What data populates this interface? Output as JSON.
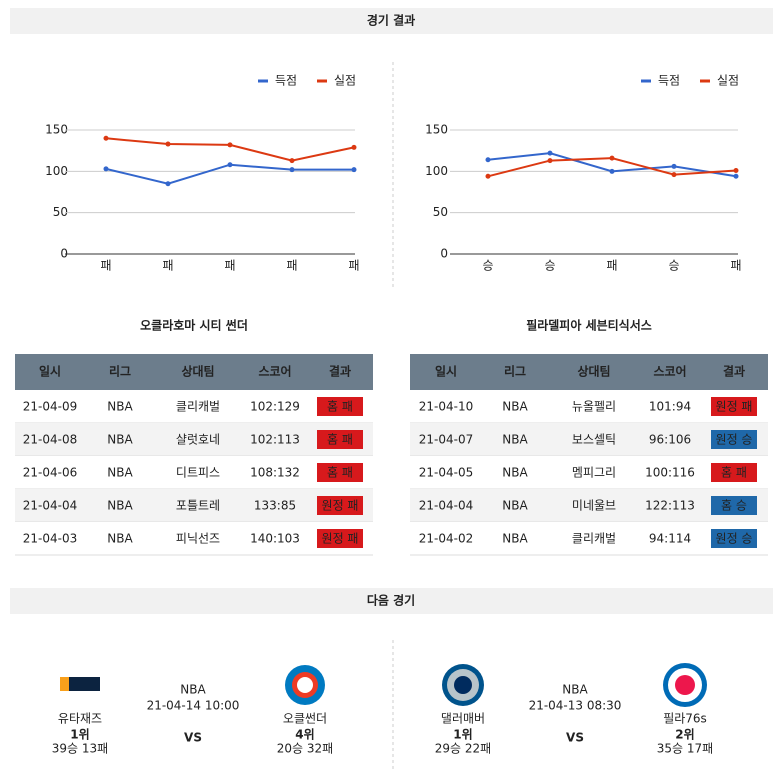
{
  "header": {
    "title": "경기 결과"
  },
  "chart_data": [
    {
      "type": "line",
      "categories": [
        "패",
        "패",
        "패",
        "패",
        "패"
      ],
      "series": [
        {
          "name": "득점",
          "color": "#3366cc",
          "values": [
            103,
            85,
            108,
            102,
            102
          ]
        },
        {
          "name": "실점",
          "color": "#dc3912",
          "values": [
            140,
            133,
            132,
            113,
            129
          ]
        }
      ],
      "ylim": [
        0,
        150
      ],
      "yticks": [
        0,
        50,
        100,
        150
      ],
      "grid": true,
      "legend": "top-right"
    },
    {
      "type": "line",
      "categories": [
        "승",
        "승",
        "패",
        "승",
        "패"
      ],
      "series": [
        {
          "name": "득점",
          "color": "#3366cc",
          "values": [
            114,
            122,
            100,
            106,
            94
          ]
        },
        {
          "name": "실점",
          "color": "#dc3912",
          "values": [
            94,
            113,
            116,
            96,
            101
          ]
        }
      ],
      "ylim": [
        0,
        150
      ],
      "yticks": [
        0,
        50,
        100,
        150
      ],
      "grid": true,
      "legend": "top-right"
    }
  ],
  "tables": [
    {
      "title": "오클라호마 시티 썬더",
      "columns": [
        "일시",
        "리그",
        "상대팀",
        "스코어",
        "결과"
      ],
      "rows": [
        [
          "21-04-09",
          "NBA",
          "클리캐벌",
          "102:129",
          {
            "text": "홈 패",
            "color": "#d7191c"
          }
        ],
        [
          "21-04-08",
          "NBA",
          "샬럿호네",
          "102:113",
          {
            "text": "홈 패",
            "color": "#d7191c"
          }
        ],
        [
          "21-04-06",
          "NBA",
          "디트피스",
          "108:132",
          {
            "text": "홈 패",
            "color": "#d7191c"
          }
        ],
        [
          "21-04-04",
          "NBA",
          "포틀트레",
          "133:85",
          {
            "text": "원정 패",
            "color": "#d7191c"
          }
        ],
        [
          "21-04-03",
          "NBA",
          "피닉선즈",
          "140:103",
          {
            "text": "원정 패",
            "color": "#d7191c"
          }
        ]
      ]
    },
    {
      "title": "필라델피아 세븐티식서스",
      "columns": [
        "일시",
        "리그",
        "상대팀",
        "스코어",
        "결과"
      ],
      "rows": [
        [
          "21-04-10",
          "NBA",
          "뉴올펠리",
          "101:94",
          {
            "text": "원정 패",
            "color": "#d7191c"
          }
        ],
        [
          "21-04-07",
          "NBA",
          "보스셀틱",
          "96:106",
          {
            "text": "원정 승",
            "color": "#1f68a9"
          }
        ],
        [
          "21-04-05",
          "NBA",
          "멤피그리",
          "100:116",
          {
            "text": "홈 패",
            "color": "#d7191c"
          }
        ],
        [
          "21-04-04",
          "NBA",
          "미네울브",
          "122:113",
          {
            "text": "홈 승",
            "color": "#1f68a9"
          }
        ],
        [
          "21-04-02",
          "NBA",
          "클리캐벌",
          "94:114",
          {
            "text": "원정 승",
            "color": "#1f68a9"
          }
        ]
      ]
    }
  ],
  "next_games": {
    "title": "다음 경기",
    "matches": [
      {
        "league": "NBA",
        "datetime": "21-04-14 10:00",
        "vs": "VS",
        "home": {
          "name": "유타재즈",
          "rank": "1위",
          "record": "39승 13패"
        },
        "away": {
          "name": "오클썬더",
          "rank": "4위",
          "record": "20승 32패"
        }
      },
      {
        "league": "NBA",
        "datetime": "21-04-13 08:30",
        "vs": "VS",
        "home": {
          "name": "댈러매버",
          "rank": "1위",
          "record": "29승 22패"
        },
        "away": {
          "name": "필라76s",
          "rank": "2위",
          "record": "35승 17패"
        }
      }
    ]
  }
}
